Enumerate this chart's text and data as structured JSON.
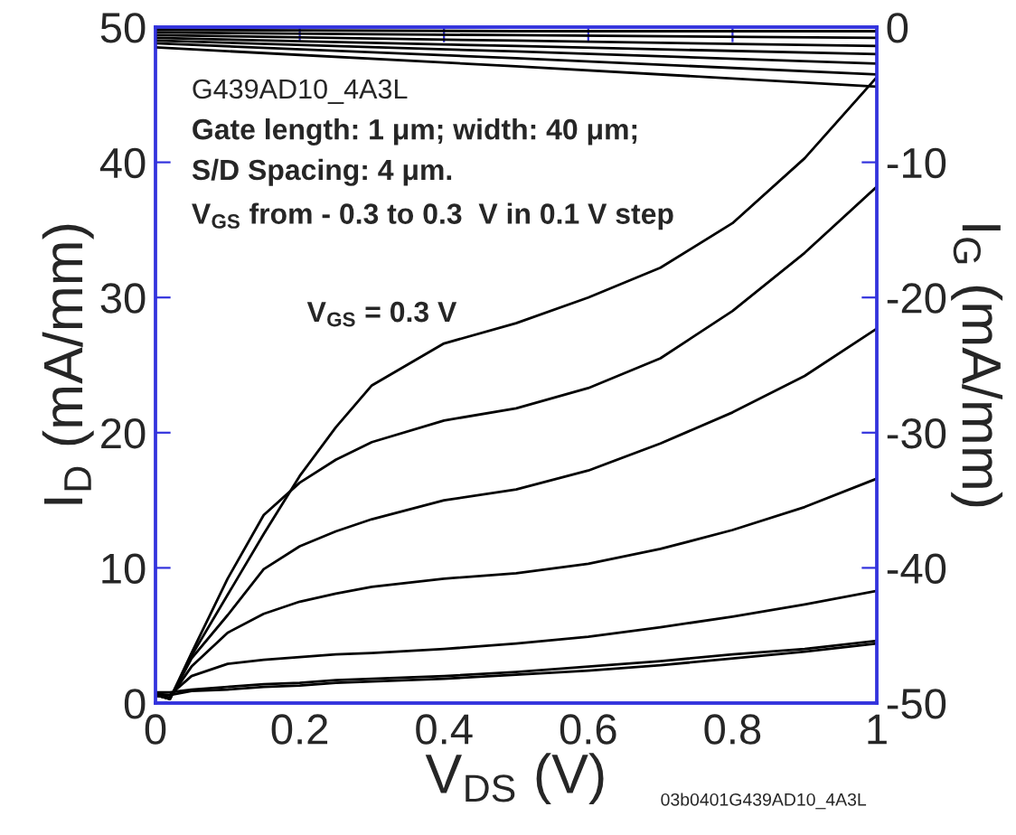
{
  "chart_data": {
    "type": "line",
    "xlabel": "V$_{DS}$ (V)",
    "ylabel": "I$_{D}$ (mA/mm)",
    "y2label": "I$_{G}$ (mA/mm)",
    "xlim": [
      0,
      1
    ],
    "xticks": [
      0,
      0.2,
      0.4,
      0.6,
      0.8,
      1
    ],
    "ylim": [
      0,
      50
    ],
    "yticks": [
      0,
      10,
      20,
      30,
      40,
      50
    ],
    "y2lim": [
      -50,
      0
    ],
    "y2ticks": [
      -50,
      -40,
      -30,
      -20,
      -10,
      0
    ],
    "grid": false,
    "marker": "none",
    "line_style": "solid",
    "annotations": [
      "G439AD10_4A3L",
      "Gate length: 1 μm; width: 40 μm;",
      "S/D Spacing: 4 μm.",
      "V$_{GS}$ from - 0.3 to 0.3  V in 0.1 V step",
      "V$_{GS}$ = 0.3 V",
      "03b0401G439AD10_4A3L"
    ],
    "x": [
      0,
      0.02,
      0.05,
      0.1,
      0.15,
      0.2,
      0.25,
      0.3,
      0.4,
      0.5,
      0.6,
      0.7,
      0.8,
      0.9,
      1.0
    ],
    "series": [
      {
        "color": "#000000",
        "values": [
          0.6,
          0.3,
          3.5,
          8,
          12.5,
          16.8,
          20.4,
          23.5,
          26.6,
          28.1,
          30,
          32.2,
          35.5,
          40.3,
          46.3
        ]
      },
      {
        "color": "#000000",
        "values": [
          0.6,
          0.3,
          3.7,
          9.2,
          13.9,
          16.3,
          18,
          19.3,
          20.9,
          21.8,
          23.3,
          25.5,
          29,
          33.3,
          38.2
        ]
      },
      {
        "color": "#000000",
        "values": [
          0.6,
          0.3,
          3.3,
          6.5,
          9.9,
          11.6,
          12.7,
          13.6,
          15,
          15.8,
          17.2,
          19.2,
          21.5,
          24.2,
          27.7
        ]
      },
      {
        "color": "#000000",
        "values": [
          0.6,
          0.4,
          2.7,
          5.2,
          6.6,
          7.5,
          8.1,
          8.6,
          9.2,
          9.6,
          10.3,
          11.4,
          12.8,
          14.5,
          16.6
        ]
      },
      {
        "color": "#000000",
        "values": [
          0.7,
          0.6,
          2.0,
          2.9,
          3.2,
          3.4,
          3.6,
          3.7,
          4.0,
          4.4,
          4.9,
          5.6,
          6.4,
          7.3,
          8.3
        ]
      },
      {
        "color": "#000000",
        "values": [
          0.8,
          0.8,
          1.0,
          1.2,
          1.4,
          1.5,
          1.7,
          1.8,
          2.0,
          2.3,
          2.7,
          3.1,
          3.6,
          4.0,
          4.6
        ]
      },
      {
        "color": "#000000",
        "values": [
          0.5,
          0.6,
          0.9,
          1.0,
          1.2,
          1.3,
          1.5,
          1.6,
          1.8,
          2.1,
          2.4,
          2.8,
          3.3,
          3.8,
          4.4
        ]
      },
      {
        "color": "#000000",
        "axis": "y2",
        "x": [
          0,
          0.5,
          1
        ],
        "values": [
          -0.2,
          -0.3,
          -0.3
        ]
      },
      {
        "color": "#000000",
        "axis": "y2",
        "x": [
          0,
          0.5,
          1
        ],
        "values": [
          -0.4,
          -0.6,
          -0.8
        ]
      },
      {
        "color": "#000000",
        "axis": "y2",
        "x": [
          0,
          0.5,
          1
        ],
        "values": [
          -0.6,
          -1.0,
          -1.4
        ]
      },
      {
        "color": "#000000",
        "axis": "y2",
        "x": [
          0,
          0.5,
          1
        ],
        "values": [
          -0.8,
          -1.4,
          -2.0
        ]
      },
      {
        "color": "#000000",
        "axis": "y2",
        "x": [
          0,
          0.5,
          1
        ],
        "values": [
          -1.0,
          -1.8,
          -2.7
        ]
      },
      {
        "color": "#000000",
        "axis": "y2",
        "x": [
          0,
          0.5,
          1
        ],
        "values": [
          -1.2,
          -2.3,
          -3.5
        ]
      },
      {
        "color": "#000000",
        "axis": "y2",
        "x": [
          0,
          0.5,
          1
        ],
        "values": [
          -1.5,
          -2.9,
          -4.4
        ]
      }
    ]
  }
}
